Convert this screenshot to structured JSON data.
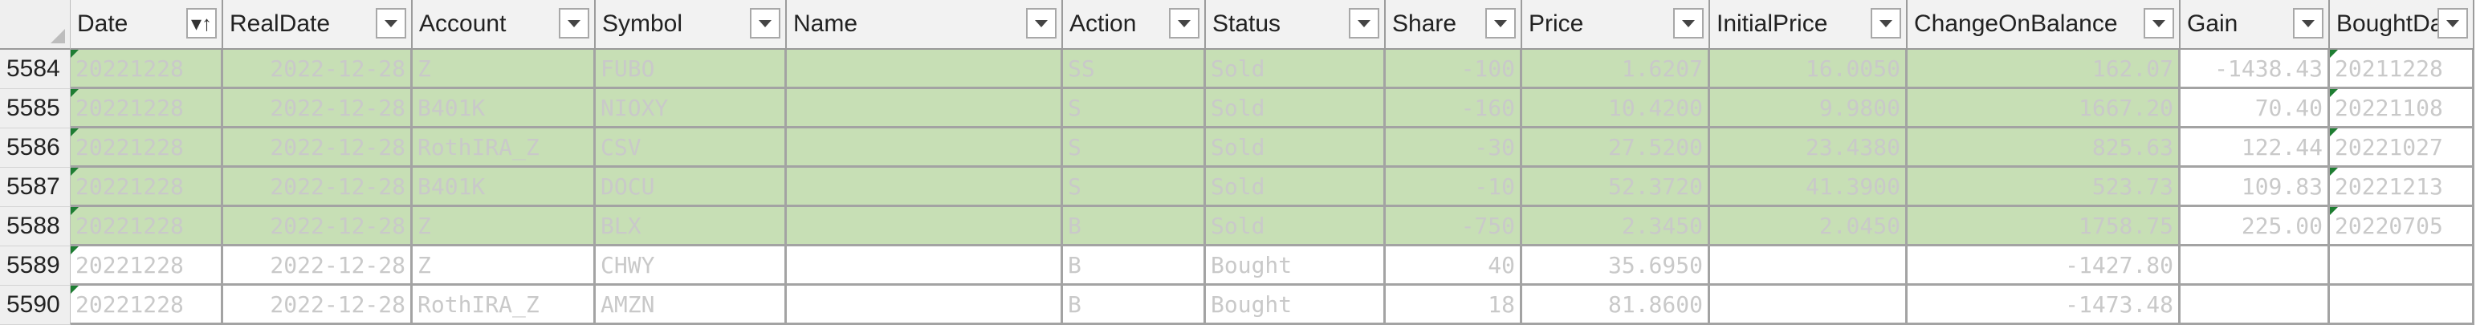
{
  "columns": {
    "date": "Date",
    "real_date": "RealDate",
    "account": "Account",
    "symbol": "Symbol",
    "name": "Name",
    "action": "Action",
    "status": "Status",
    "share": "Share",
    "price": "Price",
    "initial_price": "InitialPrice",
    "change_on_balance": "ChangeOnBalance",
    "gain": "Gain",
    "bought_date": "BoughtDat"
  },
  "rows": [
    {
      "num": "5584",
      "date": "20221228",
      "real_date": "2022-12-28",
      "account": "Z",
      "symbol": "FUBO",
      "name": "",
      "action": "SS",
      "status": "Sold",
      "share": "-100",
      "price": "1.6207",
      "initial_price": "16.0050",
      "change_on_balance": "162.07",
      "gain": "-1438.43",
      "bought_date": "20211228"
    },
    {
      "num": "5585",
      "date": "20221228",
      "real_date": "2022-12-28",
      "account": "B401K",
      "symbol": "NIOXY",
      "name": "",
      "action": "S",
      "status": "Sold",
      "share": "-160",
      "price": "10.4200",
      "initial_price": "9.9800",
      "change_on_balance": "1667.20",
      "gain": "70.40",
      "bought_date": "20221108"
    },
    {
      "num": "5586",
      "date": "20221228",
      "real_date": "2022-12-28",
      "account": "RothIRA_Z",
      "symbol": "CSV",
      "name": "",
      "action": "S",
      "status": "Sold",
      "share": "-30",
      "price": "27.5200",
      "initial_price": "23.4380",
      "change_on_balance": "825.63",
      "gain": "122.44",
      "bought_date": "20221027"
    },
    {
      "num": "5587",
      "date": "20221228",
      "real_date": "2022-12-28",
      "account": "B401K",
      "symbol": "DOCU",
      "name": "",
      "action": "S",
      "status": "Sold",
      "share": "-10",
      "price": "52.3720",
      "initial_price": "41.3900",
      "change_on_balance": "523.73",
      "gain": "109.83",
      "bought_date": "20221213"
    },
    {
      "num": "5588",
      "date": "20221228",
      "real_date": "2022-12-28",
      "account": "Z",
      "symbol": "BLX",
      "name": "",
      "action": "B",
      "status": "Sold",
      "share": "-750",
      "price": "2.3450",
      "initial_price": "2.0450",
      "change_on_balance": "1758.75",
      "gain": "225.00",
      "bought_date": "20220705"
    },
    {
      "num": "5589",
      "date": "20221228",
      "real_date": "2022-12-28",
      "account": "Z",
      "symbol": "CHWY",
      "name": "",
      "action": "B",
      "status": "Bought",
      "share": "40",
      "price": "35.6950",
      "initial_price": "",
      "change_on_balance": "-1427.80",
      "gain": "",
      "bought_date": ""
    },
    {
      "num": "5590",
      "date": "20221228",
      "real_date": "2022-12-28",
      "account": "RothIRA_Z",
      "symbol": "AMZN",
      "name": "",
      "action": "B",
      "status": "Bought",
      "share": "18",
      "price": "81.8600",
      "initial_price": "",
      "change_on_balance": "-1473.48",
      "gain": "",
      "bought_date": ""
    }
  ],
  "colors": {
    "sold_fill": "#c7dfb5",
    "header_fill": "#f2f2f2",
    "grid": "#a3a3a3",
    "cell_text": "#c9c9c9"
  }
}
